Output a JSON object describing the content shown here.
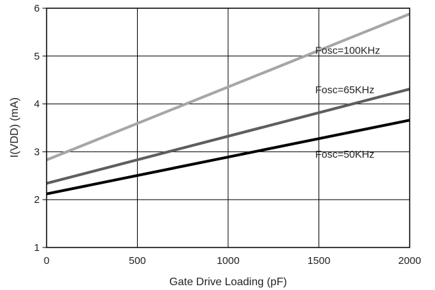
{
  "chart_data": {
    "type": "line",
    "title": "",
    "xlabel": "Gate Drive Loading (pF)",
    "ylabel": "I(VDD) (mA)",
    "xlim": [
      0,
      2000
    ],
    "ylim": [
      1,
      6
    ],
    "xticks": [
      "0",
      "500",
      "1000",
      "1500",
      "2000"
    ],
    "yticks": [
      "1",
      "2",
      "3",
      "4",
      "5",
      "6"
    ],
    "grid": true,
    "series": [
      {
        "name": "Fosc=100KHz",
        "x": [
          0,
          2000
        ],
        "y": [
          2.83,
          5.88
        ],
        "color": "#a6a6a6"
      },
      {
        "name": "Fosc=65KHz",
        "x": [
          0,
          2000
        ],
        "y": [
          2.34,
          4.31
        ],
        "color": "#5e5e5e"
      },
      {
        "name": "Fosc=50KHz",
        "x": [
          0,
          2000
        ],
        "y": [
          2.12,
          3.66
        ],
        "color": "#000000"
      }
    ]
  }
}
